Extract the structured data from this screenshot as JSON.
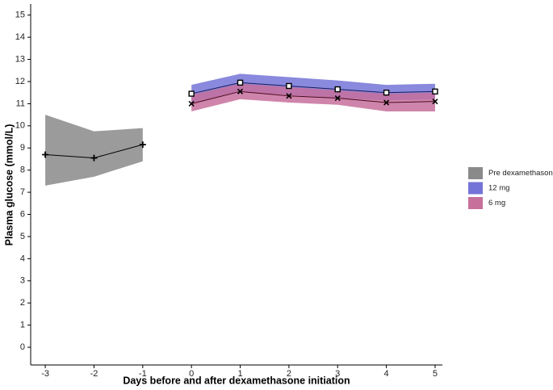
{
  "chart_data": {
    "type": "line",
    "x_label": "Days before and after dexamethasone initiation",
    "y_label": "Plasma glucose (mmol/L)",
    "xlim": [
      -3.3,
      5.15
    ],
    "ylim": [
      -0.8,
      15.5
    ],
    "xticks": [
      -3,
      -2,
      -1,
      0,
      1,
      2,
      3,
      4,
      5
    ],
    "yticks": [
      0,
      1,
      2,
      3,
      4,
      5,
      6,
      7,
      8,
      9,
      10,
      11,
      12,
      13,
      14,
      15
    ],
    "legend": "right",
    "series": [
      {
        "name": "Pre dexamethasone",
        "color": "#8a8a8a",
        "line_color": "#000000",
        "marker": "plus",
        "x": [
          -3,
          -2,
          -1
        ],
        "values": [
          8.7,
          8.55,
          9.15
        ],
        "lower": [
          7.3,
          7.7,
          8.4
        ],
        "upper": [
          10.5,
          9.75,
          9.9
        ]
      },
      {
        "name": "12 mg",
        "color": "#7474d8",
        "line_color": "#1a1a5a",
        "marker": "square",
        "x": [
          0,
          1,
          2,
          3,
          4,
          5
        ],
        "values": [
          11.45,
          11.95,
          11.8,
          11.65,
          11.5,
          11.55
        ],
        "lower": [
          11.05,
          11.55,
          11.4,
          11.25,
          11.15,
          11.2
        ],
        "upper": [
          11.85,
          12.35,
          12.2,
          12.05,
          11.85,
          11.9
        ]
      },
      {
        "name": "6 mg",
        "color": "#c7709c",
        "line_color": "#4a0a20",
        "marker": "x",
        "x": [
          0,
          1,
          2,
          3,
          4,
          5
        ],
        "values": [
          11.0,
          11.55,
          11.35,
          11.25,
          11.05,
          11.1
        ],
        "lower": [
          10.65,
          11.2,
          11.05,
          10.95,
          10.65,
          10.65
        ],
        "upper": [
          11.4,
          11.9,
          11.75,
          11.6,
          11.45,
          11.5
        ]
      }
    ]
  }
}
